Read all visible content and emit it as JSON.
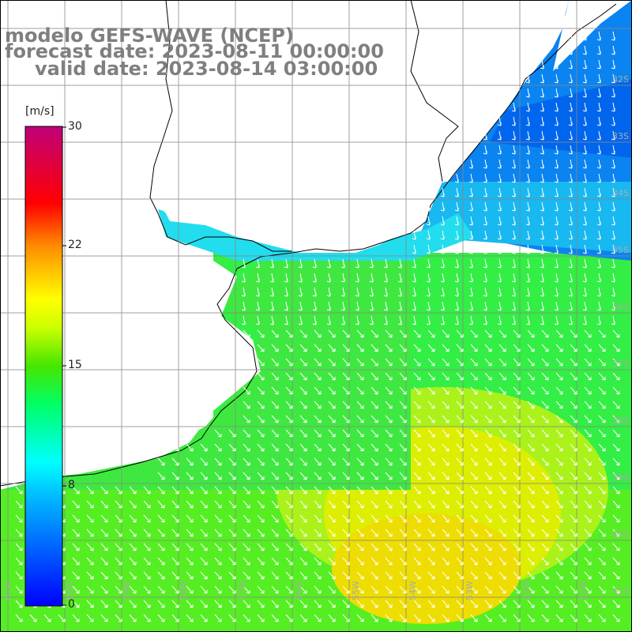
{
  "title": {
    "line1": "modelo GEFS-WAVE (NCEP)",
    "line2": "forecast date: 2023-08-11 00:00:00",
    "line3": "valid date: 2023-08-14 03:00:00"
  },
  "colorbar": {
    "unit": "[m/s]",
    "ticks": [
      "30",
      "22",
      "15",
      "8",
      "0"
    ],
    "min": 0,
    "max": 30
  },
  "map": {
    "lon_labels": [
      "61W",
      "60W",
      "59W",
      "58W",
      "57W",
      "56W",
      "55W",
      "54W",
      "53W",
      "52W",
      "51W"
    ],
    "lat_labels": [
      "32S",
      "33S",
      "34S",
      "35S",
      "36S",
      "37S",
      "38S",
      "39S",
      "40S",
      "41S"
    ]
  }
}
